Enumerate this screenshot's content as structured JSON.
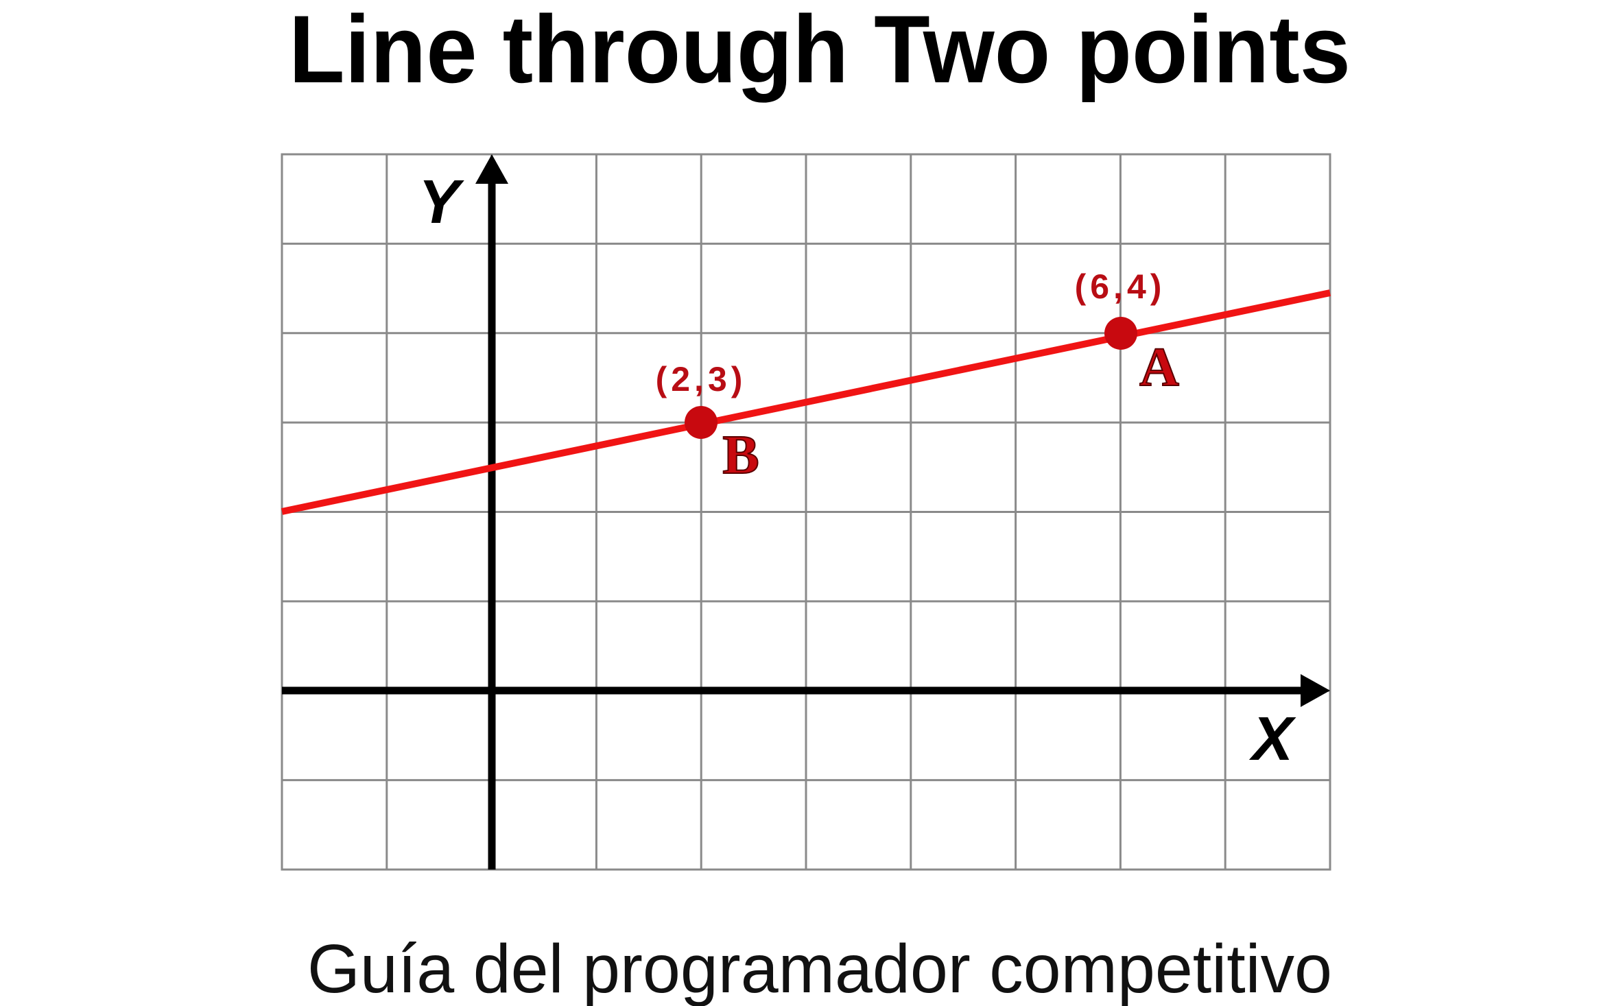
{
  "header": {
    "title": "Line through Two points"
  },
  "diagram": {
    "x_axis_label": "X",
    "y_axis_label": "Y",
    "points": [
      {
        "name": "B",
        "coord_label": "(2,3)"
      },
      {
        "name": "A",
        "coord_label": "(6,4)"
      }
    ]
  },
  "footer": {
    "caption": "Guía del programador competitivo"
  }
}
